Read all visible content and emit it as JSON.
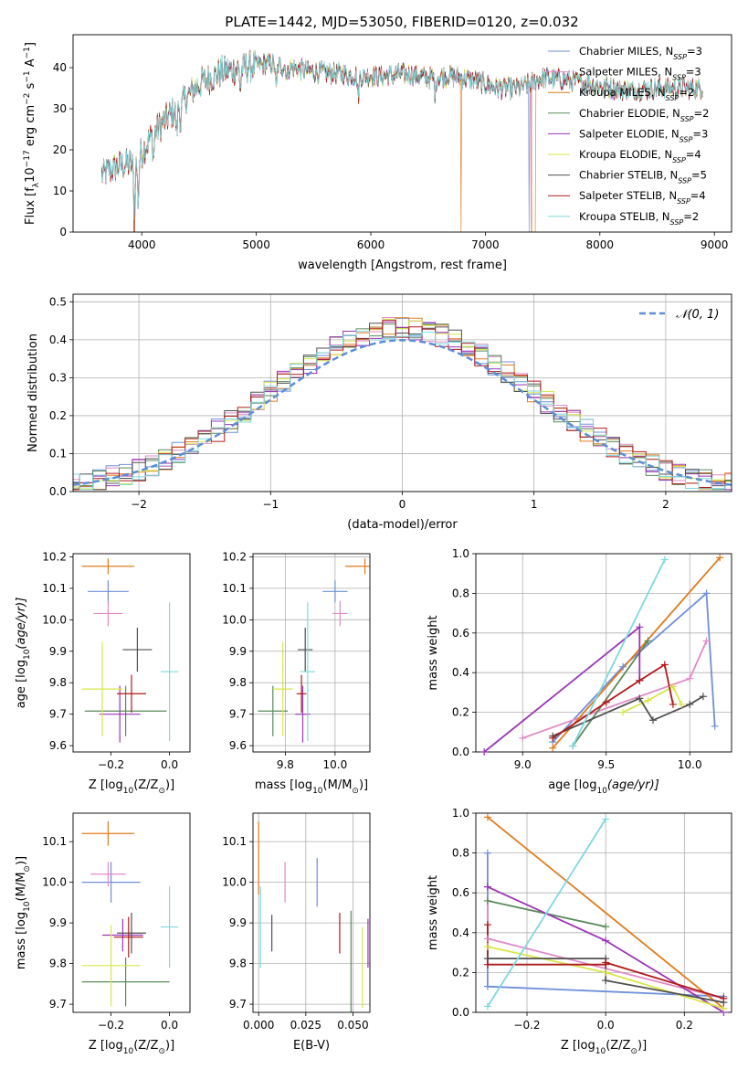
{
  "figure": {
    "title": "PLATE=1442, MJD=53050, FIBERID=0120, z=0.032"
  },
  "colors": {
    "Chabrier MILES": "#6f8fd8",
    "Salpeter MILES": "#e08ac6",
    "Kroupa MILES": "#e07b1e",
    "Chabrier ELODIE": "#5a8a5a",
    "Salpeter ELODIE": "#9b35b5",
    "Kroupa ELODIE": "#d8e64a",
    "Chabrier STELIB": "#505050",
    "Salpeter STELIB": "#b01a1a",
    "Kroupa STELIB": "#7fd8de",
    "gaussian": "#5b8ed6"
  },
  "chart_data": [
    {
      "id": "spectrum",
      "type": "line",
      "xlabel": "wavelength [Angstrom, rest frame]",
      "ylabel": "Flux [f_λ10^-17 erg cm^-2 s^-1 A^-1]",
      "xlim": [
        3400,
        9150
      ],
      "ylim": [
        0,
        48
      ],
      "xticks": [
        4000,
        5000,
        6000,
        7000,
        8000,
        9000
      ],
      "yticks": [
        0,
        10,
        20,
        30,
        40
      ],
      "legend_position": "top-right",
      "continuum_x": [
        3650,
        3800,
        3950,
        4100,
        4300,
        4500,
        4700,
        4900,
        5100,
        5300,
        5500,
        5700,
        5900,
        6100,
        6300,
        6500,
        6700,
        6900,
        7100,
        7300,
        7500,
        7700,
        7900,
        8100,
        8300,
        8500,
        8700,
        8900
      ],
      "continuum_y": [
        14,
        16,
        17,
        24,
        30,
        36,
        39,
        40,
        41,
        40,
        39,
        38.5,
        38,
        38,
        38.5,
        37.5,
        38,
        37,
        35,
        35,
        37.5,
        37,
        36,
        35,
        34.5,
        35,
        35,
        35
      ],
      "series": [
        {
          "name": "Chabrier MILES, N_SSP=3",
          "label": "Chabrier MILES",
          "n_ssp": "3"
        },
        {
          "name": "Salpeter MILES, N_SSP=3",
          "label": "Salpeter MILES",
          "n_ssp": "3"
        },
        {
          "name": "Kroupa MILES, N_SSP=2",
          "label": "Kroupa MILES",
          "n_ssp": "2"
        },
        {
          "name": "Chabrier ELODIE, N_SSP=2",
          "label": "Chabrier ELODIE",
          "n_ssp": "2"
        },
        {
          "name": "Salpeter ELODIE, N_SSP=3",
          "label": "Salpeter ELODIE",
          "n_ssp": "3"
        },
        {
          "name": "Kroupa ELODIE, N_SSP=4",
          "label": "Kroupa ELODIE",
          "n_ssp": "4"
        },
        {
          "name": "Chabrier STELIB, N_SSP=5",
          "label": "Chabrier STELIB",
          "n_ssp": "5"
        },
        {
          "name": "Salpeter STELIB, N_SSP=4",
          "label": "Salpeter STELIB",
          "n_ssp": "4"
        },
        {
          "name": "Kroupa STELIB, N_SSP=2",
          "label": "Kroupa STELIB",
          "n_ssp": "2"
        }
      ]
    },
    {
      "id": "residuals",
      "type": "line",
      "xlabel": "(data-model)/error",
      "ylabel": "Normed distribution",
      "xlim": [
        -2.5,
        2.5
      ],
      "ylim": [
        0,
        0.52
      ],
      "xticks": [
        -2,
        -1,
        0,
        1,
        2
      ],
      "yticks": [
        0.0,
        0.1,
        0.2,
        0.3,
        0.4,
        0.5
      ],
      "grid": true,
      "legend_position": "top-right",
      "gaussian_label": "𝒩(0, 1)",
      "bin_width": 0.1
    },
    {
      "id": "age_vs_Z",
      "type": "scatter",
      "xlabel": "Z [log10(Z/Z⊙)]",
      "ylabel": "age  [log10(age/yr)]",
      "xlim": [
        -0.33,
        0.07
      ],
      "ylim": [
        9.58,
        10.21
      ],
      "xticks": [
        -0.2,
        0.0
      ],
      "yticks": [
        9.6,
        9.7,
        9.8,
        9.9,
        10.0,
        10.1,
        10.2
      ],
      "grid": false,
      "points": [
        {
          "series": "Chabrier MILES",
          "x": -0.21,
          "y": 10.09,
          "xerr": 0.07,
          "yerr": 0.035
        },
        {
          "series": "Salpeter MILES",
          "x": -0.21,
          "y": 10.02,
          "xerr": 0.05,
          "yerr": 0.04
        },
        {
          "series": "Kroupa MILES",
          "x": -0.21,
          "y": 10.17,
          "xerr": 0.09,
          "yerr": 0.025
        },
        {
          "series": "Chabrier ELODIE",
          "x": -0.15,
          "y": 9.71,
          "xerr": 0.14,
          "yerr": 0.08
        },
        {
          "series": "Salpeter ELODIE",
          "x": -0.17,
          "y": 9.7,
          "xerr": 0.07,
          "yerr": 0.09
        },
        {
          "series": "Kroupa ELODIE",
          "x": -0.23,
          "y": 9.78,
          "xerr": 0.07,
          "yerr": 0.15
        },
        {
          "series": "Chabrier STELIB",
          "x": -0.11,
          "y": 9.905,
          "xerr": 0.05,
          "yerr": 0.07
        },
        {
          "series": "Salpeter STELIB",
          "x": -0.13,
          "y": 9.765,
          "xerr": 0.05,
          "yerr": 0.06
        },
        {
          "series": "Kroupa STELIB",
          "x": 0.0,
          "y": 9.835,
          "xerr": 0.03,
          "yerr": 0.22
        }
      ]
    },
    {
      "id": "age_vs_mass",
      "type": "scatter",
      "xlabel": "mass [log10(M/M⊙)]",
      "xlim": [
        9.67,
        10.14
      ],
      "ylim": [
        9.58,
        10.21
      ],
      "xticks": [
        9.8,
        10.0
      ],
      "yticks": [
        9.6,
        9.7,
        9.8,
        9.9,
        10.0,
        10.1,
        10.2
      ],
      "grid": true,
      "points": [
        {
          "series": "Chabrier MILES",
          "x": 10.0,
          "y": 10.09,
          "xerr": 0.05,
          "yerr": 0.035
        },
        {
          "series": "Salpeter MILES",
          "x": 10.02,
          "y": 10.02,
          "xerr": 0.03,
          "yerr": 0.04
        },
        {
          "series": "Kroupa MILES",
          "x": 10.12,
          "y": 10.17,
          "xerr": 0.08,
          "yerr": 0.025
        },
        {
          "series": "Chabrier ELODIE",
          "x": 9.75,
          "y": 9.71,
          "xerr": 0.06,
          "yerr": 0.08
        },
        {
          "series": "Salpeter ELODIE",
          "x": 9.87,
          "y": 9.7,
          "xerr": 0.03,
          "yerr": 0.09
        },
        {
          "series": "Kroupa ELODIE",
          "x": 9.79,
          "y": 9.78,
          "xerr": 0.04,
          "yerr": 0.15
        },
        {
          "series": "Chabrier STELIB",
          "x": 9.88,
          "y": 9.905,
          "xerr": 0.03,
          "yerr": 0.07
        },
        {
          "series": "Salpeter STELIB",
          "x": 9.865,
          "y": 9.765,
          "xerr": 0.02,
          "yerr": 0.06
        },
        {
          "series": "Kroupa STELIB",
          "x": 9.89,
          "y": 9.835,
          "xerr": 0.03,
          "yerr": 0.22
        }
      ]
    },
    {
      "id": "mass_weight_vs_age",
      "type": "line",
      "xlabel": "age  [log10(age/yr)]",
      "ylabel": "mass weight",
      "xlim": [
        8.72,
        10.25
      ],
      "ylim": [
        0,
        1.0
      ],
      "xticks": [
        9.0,
        9.5,
        10.0
      ],
      "yticks": [
        0.0,
        0.2,
        0.4,
        0.6,
        0.8,
        1.0
      ],
      "grid": true,
      "series": [
        {
          "name": "Chabrier MILES",
          "x": [
            9.18,
            9.6,
            10.1,
            10.15
          ],
          "y": [
            0.05,
            0.43,
            0.8,
            0.13
          ]
        },
        {
          "name": "Salpeter MILES",
          "x": [
            9.0,
            10.0,
            10.1
          ],
          "y": [
            0.07,
            0.37,
            0.56
          ]
        },
        {
          "name": "Kroupa MILES",
          "x": [
            9.18,
            10.18
          ],
          "y": [
            0.02,
            0.98
          ]
        },
        {
          "name": "Chabrier ELODIE",
          "x": [
            9.3,
            9.75
          ],
          "y": [
            0.03,
            0.56
          ]
        },
        {
          "name": "Salpeter ELODIE",
          "x": [
            8.77,
            9.7,
            9.7
          ],
          "y": [
            0.0,
            0.63,
            0.36
          ]
        },
        {
          "name": "Kroupa ELODIE",
          "x": [
            9.6,
            9.75,
            9.9,
            9.95
          ],
          "y": [
            0.2,
            0.26,
            0.33,
            0.24
          ]
        },
        {
          "name": "Chabrier STELIB",
          "x": [
            9.18,
            9.7,
            9.78,
            10.0,
            10.08
          ],
          "y": [
            0.08,
            0.27,
            0.16,
            0.24,
            0.28
          ]
        },
        {
          "name": "Salpeter STELIB",
          "x": [
            9.18,
            9.5,
            9.7,
            9.85,
            9.9
          ],
          "y": [
            0.07,
            0.25,
            0.36,
            0.44,
            0.24
          ]
        },
        {
          "name": "Kroupa STELIB",
          "x": [
            9.3,
            9.85
          ],
          "y": [
            0.03,
            0.97
          ]
        }
      ]
    },
    {
      "id": "mass_vs_Z",
      "type": "scatter",
      "xlabel": "Z [log10(Z/Z⊙)]",
      "ylabel": "mass [log10(M/M⊙)]",
      "xlim": [
        -0.33,
        0.07
      ],
      "ylim": [
        9.68,
        10.17
      ],
      "xticks": [
        -0.2,
        0.0
      ],
      "yticks": [
        9.7,
        9.8,
        9.9,
        10.0,
        10.1
      ],
      "grid": false,
      "points": [
        {
          "series": "Chabrier MILES",
          "x": -0.2,
          "y": 10.0,
          "xerr": 0.1,
          "yerr": 0.05
        },
        {
          "series": "Salpeter MILES",
          "x": -0.21,
          "y": 10.02,
          "xerr": 0.06,
          "yerr": 0.03
        },
        {
          "series": "Kroupa MILES",
          "x": -0.21,
          "y": 10.12,
          "xerr": 0.09,
          "yerr": 0.03
        },
        {
          "series": "Chabrier ELODIE",
          "x": -0.15,
          "y": 9.755,
          "xerr": 0.15,
          "yerr": 0.06
        },
        {
          "series": "Salpeter ELODIE",
          "x": -0.16,
          "y": 9.87,
          "xerr": 0.07,
          "yerr": 0.04
        },
        {
          "series": "Kroupa ELODIE",
          "x": -0.2,
          "y": 9.795,
          "xerr": 0.1,
          "yerr": 0.1
        },
        {
          "series": "Chabrier STELIB",
          "x": -0.13,
          "y": 9.875,
          "xerr": 0.05,
          "yerr": 0.05
        },
        {
          "series": "Salpeter STELIB",
          "x": -0.14,
          "y": 9.865,
          "xerr": 0.05,
          "yerr": 0.05
        },
        {
          "series": "Kroupa STELIB",
          "x": 0.0,
          "y": 9.89,
          "xerr": 0.03,
          "yerr": 0.1
        }
      ]
    },
    {
      "id": "mass_vs_ebv",
      "type": "scatter",
      "xlabel": "E(B-V)",
      "xlim": [
        -0.003,
        0.059
      ],
      "ylim": [
        9.68,
        10.17
      ],
      "xticks": [
        0.0,
        0.025,
        0.05
      ],
      "yticks": [
        9.7,
        9.8,
        9.9,
        10.0,
        10.1
      ],
      "grid": true,
      "points": [
        {
          "series": "Chabrier MILES",
          "x": 0.031,
          "y": 10.0,
          "yerr": 0.06
        },
        {
          "series": "Salpeter MILES",
          "x": 0.014,
          "y": 10.0,
          "yerr": 0.05
        },
        {
          "series": "Kroupa MILES",
          "x": 0.0,
          "y": 10.06,
          "yerr": 0.09
        },
        {
          "series": "Chabrier ELODIE",
          "x": 0.049,
          "y": 9.79,
          "yerr": 0.14
        },
        {
          "series": "Salpeter ELODIE",
          "x": 0.058,
          "y": 9.85,
          "yerr": 0.06
        },
        {
          "series": "Kroupa ELODIE",
          "x": 0.055,
          "y": 9.79,
          "yerr": 0.1
        },
        {
          "series": "Chabrier STELIB",
          "x": 0.007,
          "y": 9.875,
          "yerr": 0.045
        },
        {
          "series": "Salpeter STELIB",
          "x": 0.043,
          "y": 9.875,
          "yerr": 0.05
        },
        {
          "series": "Kroupa STELIB",
          "x": 0.001,
          "y": 9.89,
          "yerr": 0.1
        }
      ]
    },
    {
      "id": "mass_weight_vs_Z",
      "type": "line",
      "xlabel": "Z [log10(Z/Z⊙)]",
      "ylabel": "mass weight",
      "xlim": [
        -0.33,
        0.32
      ],
      "ylim": [
        0,
        1.0
      ],
      "xticks": [
        -0.2,
        0.0,
        0.2
      ],
      "yticks": [
        0.0,
        0.2,
        0.4,
        0.6,
        0.8,
        1.0
      ],
      "grid": true,
      "series": [
        {
          "name": "Chabrier MILES",
          "x": [
            -0.3,
            -0.3,
            0.3
          ],
          "y": [
            0.8,
            0.13,
            0.08
          ]
        },
        {
          "name": "Salpeter MILES",
          "x": [
            -0.3,
            -0.3,
            0.3
          ],
          "y": [
            0.56,
            0.37,
            0.07
          ]
        },
        {
          "name": "Kroupa MILES",
          "x": [
            -0.3,
            0.3
          ],
          "y": [
            0.98,
            0.02
          ]
        },
        {
          "name": "Chabrier ELODIE",
          "x": [
            -0.3,
            0.0
          ],
          "y": [
            0.56,
            0.43
          ]
        },
        {
          "name": "Salpeter ELODIE",
          "x": [
            -0.3,
            0.0,
            0.3
          ],
          "y": [
            0.63,
            0.36,
            0.0
          ]
        },
        {
          "name": "Kroupa ELODIE",
          "x": [
            -0.3,
            0.0,
            0.3
          ],
          "y": [
            0.33,
            0.2,
            0.02
          ]
        },
        {
          "name": "Chabrier STELIB",
          "x": [
            -0.3,
            0.0,
            0.0,
            0.3
          ],
          "y": [
            0.27,
            0.27,
            0.16,
            0.05
          ]
        },
        {
          "name": "Salpeter STELIB",
          "x": [
            -0.3,
            -0.3,
            0.0,
            0.0,
            0.3
          ],
          "y": [
            0.44,
            0.24,
            0.24,
            0.25,
            0.07
          ]
        },
        {
          "name": "Kroupa STELIB",
          "x": [
            -0.3,
            0.0
          ],
          "y": [
            0.03,
            0.97
          ]
        }
      ]
    }
  ]
}
